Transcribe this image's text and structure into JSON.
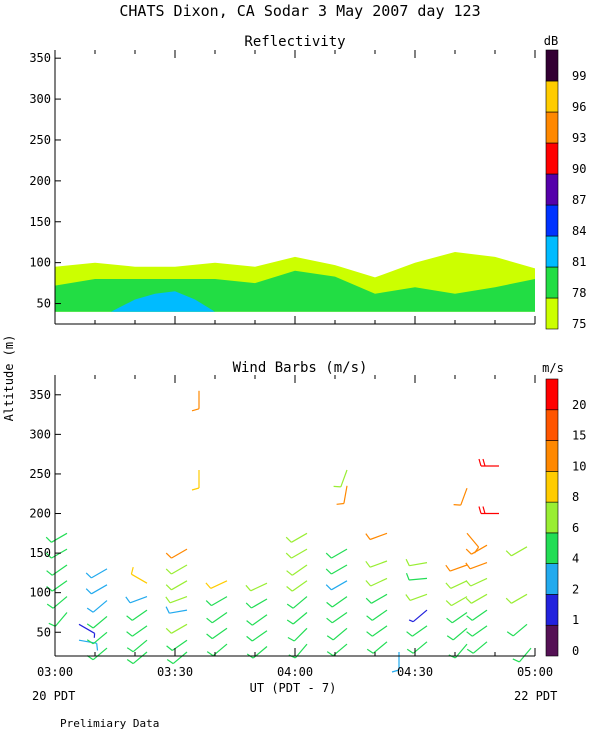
{
  "page": {
    "title": "CHATS Dixon, CA  Sodar   3 May 2007  day 123",
    "footer_note": "Prelimiary Data",
    "date_left": "20 PDT",
    "date_right": "22 PDT",
    "xlabel": "UT  (PDT - 7)",
    "ylabel": "Altitude (m)"
  },
  "chart_data": [
    {
      "type": "area",
      "title": "Reflectivity",
      "xlabel": "UT  (PDT - 7)",
      "ylabel": "Altitude (m)",
      "x_ticks": [
        "03:00",
        "03:30",
        "04:00",
        "04:30",
        "05:00"
      ],
      "x_range_minutes": [
        0,
        120
      ],
      "ylim": [
        25,
        360
      ],
      "y_ticks": [
        50,
        100,
        150,
        200,
        250,
        300,
        350
      ],
      "colorbar": {
        "unit": "dB",
        "levels": [
          75,
          78,
          81,
          84,
          87,
          90,
          93,
          96,
          99
        ],
        "colors": [
          "#ccff00",
          "#22dd44",
          "#00bbff",
          "#0033ff",
          "#5500aa",
          "#ff0000",
          "#ff8800",
          "#ffcc00",
          "#330033"
        ]
      },
      "layers": [
        {
          "level": 75,
          "color": "#ccff00",
          "bottom": 40,
          "x": [
            0,
            10,
            20,
            30,
            40,
            50,
            60,
            70,
            80,
            90,
            100,
            110,
            120
          ],
          "top": [
            95,
            100,
            95,
            95,
            100,
            95,
            107,
            97,
            82,
            100,
            113,
            107,
            93
          ]
        },
        {
          "level": 78,
          "color": "#22dd44",
          "bottom": 40,
          "x": [
            0,
            10,
            20,
            30,
            40,
            50,
            60,
            70,
            80,
            90,
            100,
            110,
            120
          ],
          "top": [
            72,
            80,
            80,
            80,
            80,
            75,
            90,
            83,
            62,
            70,
            62,
            70,
            80
          ]
        },
        {
          "level": 81,
          "color": "#00bbff",
          "bottom": 40,
          "x": [
            14,
            20,
            25,
            30,
            35,
            40
          ],
          "top": [
            40,
            55,
            62,
            65,
            55,
            40
          ]
        }
      ]
    },
    {
      "type": "scatter",
      "title": "Wind Barbs (m/s)",
      "xlabel": "UT  (PDT - 7)",
      "ylabel": "Altitude (m)",
      "x_ticks": [
        "03:00",
        "03:30",
        "04:00",
        "04:30",
        "05:00"
      ],
      "x_range_minutes": [
        0,
        120
      ],
      "ylim": [
        20,
        375
      ],
      "y_ticks": [
        50,
        100,
        150,
        200,
        250,
        300,
        350
      ],
      "colorbar": {
        "unit": "m/s",
        "levels": [
          0,
          1,
          2,
          4,
          6,
          8,
          10,
          15,
          20
        ],
        "colors": [
          "#551155",
          "#2222dd",
          "#22aaee",
          "#22dd55",
          "#99ee33",
          "#ffcc00",
          "#ff8800",
          "#ff5500",
          "#ff0000"
        ]
      },
      "barbs": [
        {
          "x": 3,
          "z": 175,
          "dir": 240,
          "speed": 4
        },
        {
          "x": 3,
          "z": 155,
          "dir": 240,
          "speed": 4
        },
        {
          "x": 3,
          "z": 135,
          "dir": 235,
          "speed": 4
        },
        {
          "x": 3,
          "z": 115,
          "dir": 235,
          "speed": 4
        },
        {
          "x": 3,
          "z": 95,
          "dir": 230,
          "speed": 4
        },
        {
          "x": 3,
          "z": 75,
          "dir": 220,
          "speed": 4
        },
        {
          "x": 6,
          "z": 60,
          "dir": 120,
          "speed": 1
        },
        {
          "x": 6,
          "z": 40,
          "dir": 100,
          "speed": 2
        },
        {
          "x": 13,
          "z": 130,
          "dir": 240,
          "speed": 3
        },
        {
          "x": 13,
          "z": 110,
          "dir": 240,
          "speed": 2
        },
        {
          "x": 13,
          "z": 90,
          "dir": 230,
          "speed": 3
        },
        {
          "x": 13,
          "z": 70,
          "dir": 230,
          "speed": 4
        },
        {
          "x": 13,
          "z": 50,
          "dir": 230,
          "speed": 4
        },
        {
          "x": 13,
          "z": 30,
          "dir": 230,
          "speed": 4
        },
        {
          "x": 23,
          "z": 112,
          "dir": 300,
          "speed": 8
        },
        {
          "x": 23,
          "z": 95,
          "dir": 250,
          "speed": 2
        },
        {
          "x": 23,
          "z": 78,
          "dir": 235,
          "speed": 4
        },
        {
          "x": 23,
          "z": 58,
          "dir": 235,
          "speed": 4
        },
        {
          "x": 23,
          "z": 40,
          "dir": 230,
          "speed": 4
        },
        {
          "x": 23,
          "z": 25,
          "dir": 230,
          "speed": 4
        },
        {
          "x": 33,
          "z": 155,
          "dir": 240,
          "speed": 10
        },
        {
          "x": 33,
          "z": 135,
          "dir": 240,
          "speed": 6
        },
        {
          "x": 33,
          "z": 115,
          "dir": 240,
          "speed": 6
        },
        {
          "x": 33,
          "z": 95,
          "dir": 250,
          "speed": 6
        },
        {
          "x": 33,
          "z": 78,
          "dir": 260,
          "speed": 2
        },
        {
          "x": 33,
          "z": 60,
          "dir": 240,
          "speed": 6
        },
        {
          "x": 33,
          "z": 40,
          "dir": 235,
          "speed": 4
        },
        {
          "x": 33,
          "z": 25,
          "dir": 230,
          "speed": 4
        },
        {
          "x": 36,
          "z": 355,
          "dir": 180,
          "speed": 10
        },
        {
          "x": 36,
          "z": 255,
          "dir": 180,
          "speed": 8
        },
        {
          "x": 43,
          "z": 115,
          "dir": 245,
          "speed": 8
        },
        {
          "x": 43,
          "z": 95,
          "dir": 240,
          "speed": 4
        },
        {
          "x": 43,
          "z": 75,
          "dir": 235,
          "speed": 4
        },
        {
          "x": 43,
          "z": 55,
          "dir": 235,
          "speed": 4
        },
        {
          "x": 43,
          "z": 35,
          "dir": 230,
          "speed": 4
        },
        {
          "x": 53,
          "z": 112,
          "dir": 245,
          "speed": 6
        },
        {
          "x": 53,
          "z": 92,
          "dir": 240,
          "speed": 4
        },
        {
          "x": 53,
          "z": 72,
          "dir": 235,
          "speed": 4
        },
        {
          "x": 53,
          "z": 52,
          "dir": 235,
          "speed": 4
        },
        {
          "x": 53,
          "z": 32,
          "dir": 230,
          "speed": 4
        },
        {
          "x": 63,
          "z": 175,
          "dir": 240,
          "speed": 6
        },
        {
          "x": 63,
          "z": 155,
          "dir": 240,
          "speed": 6
        },
        {
          "x": 63,
          "z": 135,
          "dir": 235,
          "speed": 6
        },
        {
          "x": 63,
          "z": 115,
          "dir": 235,
          "speed": 6
        },
        {
          "x": 63,
          "z": 95,
          "dir": 230,
          "speed": 4
        },
        {
          "x": 63,
          "z": 75,
          "dir": 230,
          "speed": 4
        },
        {
          "x": 63,
          "z": 55,
          "dir": 225,
          "speed": 4
        },
        {
          "x": 63,
          "z": 35,
          "dir": 220,
          "speed": 4
        },
        {
          "x": 73,
          "z": 255,
          "dir": 200,
          "speed": 6
        },
        {
          "x": 73,
          "z": 235,
          "dir": 190,
          "speed": 10
        },
        {
          "x": 73,
          "z": 155,
          "dir": 240,
          "speed": 4
        },
        {
          "x": 73,
          "z": 135,
          "dir": 240,
          "speed": 4
        },
        {
          "x": 73,
          "z": 115,
          "dir": 240,
          "speed": 3
        },
        {
          "x": 73,
          "z": 95,
          "dir": 235,
          "speed": 4
        },
        {
          "x": 73,
          "z": 75,
          "dir": 235,
          "speed": 4
        },
        {
          "x": 73,
          "z": 55,
          "dir": 230,
          "speed": 4
        },
        {
          "x": 73,
          "z": 35,
          "dir": 230,
          "speed": 4
        },
        {
          "x": 83,
          "z": 175,
          "dir": 250,
          "speed": 10
        },
        {
          "x": 83,
          "z": 140,
          "dir": 250,
          "speed": 6
        },
        {
          "x": 83,
          "z": 118,
          "dir": 245,
          "speed": 6
        },
        {
          "x": 83,
          "z": 98,
          "dir": 240,
          "speed": 4
        },
        {
          "x": 83,
          "z": 78,
          "dir": 235,
          "speed": 4
        },
        {
          "x": 83,
          "z": 58,
          "dir": 235,
          "speed": 4
        },
        {
          "x": 83,
          "z": 38,
          "dir": 230,
          "speed": 4
        },
        {
          "x": 86,
          "z": 25,
          "dir": 180,
          "speed": 2
        },
        {
          "x": 93,
          "z": 138,
          "dir": 260,
          "speed": 6
        },
        {
          "x": 93,
          "z": 118,
          "dir": 265,
          "speed": 4
        },
        {
          "x": 93,
          "z": 98,
          "dir": 250,
          "speed": 6
        },
        {
          "x": 93,
          "z": 78,
          "dir": 230,
          "speed": 1
        },
        {
          "x": 93,
          "z": 58,
          "dir": 235,
          "speed": 4
        },
        {
          "x": 93,
          "z": 38,
          "dir": 230,
          "speed": 4
        },
        {
          "x": 103,
          "z": 232,
          "dir": 200,
          "speed": 10
        },
        {
          "x": 103,
          "z": 175,
          "dir": 140,
          "speed": 10
        },
        {
          "x": 103,
          "z": 135,
          "dir": 250,
          "speed": 10
        },
        {
          "x": 103,
          "z": 115,
          "dir": 245,
          "speed": 6
        },
        {
          "x": 103,
          "z": 95,
          "dir": 240,
          "speed": 6
        },
        {
          "x": 103,
          "z": 75,
          "dir": 235,
          "speed": 4
        },
        {
          "x": 103,
          "z": 55,
          "dir": 230,
          "speed": 4
        },
        {
          "x": 103,
          "z": 35,
          "dir": 220,
          "speed": 4
        },
        {
          "x": 108,
          "z": 160,
          "dir": 240,
          "speed": 10
        },
        {
          "x": 108,
          "z": 138,
          "dir": 250,
          "speed": 10
        },
        {
          "x": 108,
          "z": 118,
          "dir": 245,
          "speed": 6
        },
        {
          "x": 108,
          "z": 98,
          "dir": 240,
          "speed": 6
        },
        {
          "x": 108,
          "z": 78,
          "dir": 235,
          "speed": 4
        },
        {
          "x": 108,
          "z": 58,
          "dir": 235,
          "speed": 4
        },
        {
          "x": 108,
          "z": 38,
          "dir": 230,
          "speed": 4
        },
        {
          "x": 111,
          "z": 260,
          "dir": 270,
          "speed": 20
        },
        {
          "x": 111,
          "z": 200,
          "dir": 270,
          "speed": 20
        },
        {
          "x": 118,
          "z": 158,
          "dir": 240,
          "speed": 6
        },
        {
          "x": 118,
          "z": 98,
          "dir": 240,
          "speed": 6
        },
        {
          "x": 118,
          "z": 60,
          "dir": 230,
          "speed": 4
        },
        {
          "x": 119,
          "z": 30,
          "dir": 220,
          "speed": 4
        }
      ]
    }
  ]
}
